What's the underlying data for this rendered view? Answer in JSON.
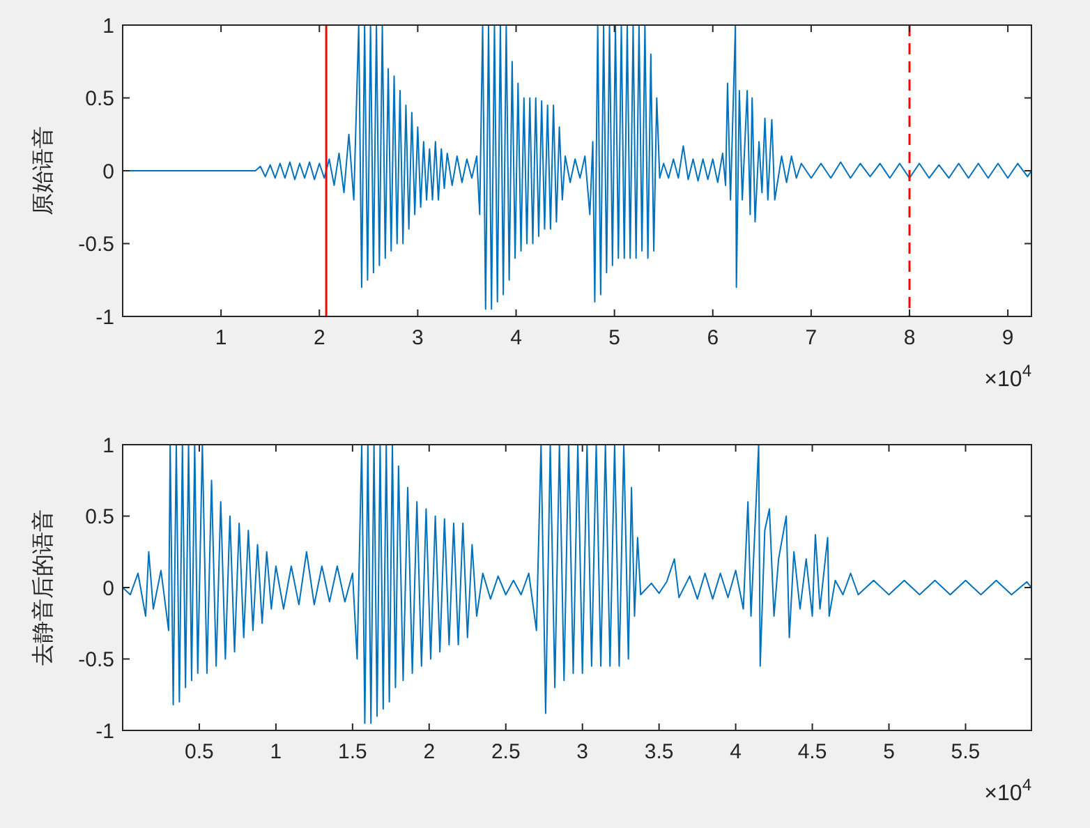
{
  "chart_data": [
    {
      "type": "line",
      "ylabel": "原始语音",
      "xlim": [
        0,
        9.24
      ],
      "ylim": [
        -1,
        1
      ],
      "xticks": [
        1,
        2,
        3,
        4,
        5,
        6,
        7,
        8,
        9
      ],
      "yticks": [
        -1,
        -0.5,
        0,
        0.5,
        1
      ],
      "grid": false,
      "marker": "none",
      "line_style": "solid",
      "annotations": [
        "×10$^{4}$"
      ],
      "ref_lines": [
        {
          "axis": "x",
          "value": 2.07,
          "label": null,
          "color": "#ff0000",
          "line_style": "solid"
        },
        {
          "axis": "x",
          "value": 8,
          "label": null,
          "color": "#ff0000",
          "line_style": "dashed"
        }
      ],
      "series": [
        {
          "color": "#0072bd",
          "x": [
            0,
            1.35,
            1.4,
            1.45,
            1.5,
            1.55,
            1.6,
            1.65,
            1.7,
            1.75,
            1.8,
            1.85,
            1.9,
            1.95,
            2,
            2.05,
            2.1,
            2.15,
            2.2,
            2.25,
            2.3,
            2.35,
            2.4,
            2.43,
            2.46,
            2.49,
            2.52,
            2.55,
            2.58,
            2.61,
            2.64,
            2.67,
            2.7,
            2.73,
            2.76,
            2.79,
            2.82,
            2.85,
            2.88,
            2.91,
            2.94,
            2.97,
            3,
            3.03,
            3.06,
            3.09,
            3.12,
            3.15,
            3.18,
            3.21,
            3.24,
            3.27,
            3.3,
            3.35,
            3.4,
            3.45,
            3.5,
            3.55,
            3.6,
            3.63,
            3.66,
            3.69,
            3.72,
            3.75,
            3.78,
            3.81,
            3.84,
            3.87,
            3.9,
            3.93,
            3.96,
            3.99,
            4.02,
            4.05,
            4.08,
            4.11,
            4.14,
            4.17,
            4.2,
            4.23,
            4.26,
            4.29,
            4.32,
            4.35,
            4.38,
            4.41,
            4.44,
            4.47,
            4.5,
            4.55,
            4.6,
            4.65,
            4.7,
            4.75,
            4.78,
            4.8,
            4.83,
            4.86,
            4.89,
            4.92,
            4.95,
            4.98,
            5.01,
            5.04,
            5.07,
            5.1,
            5.13,
            5.16,
            5.19,
            5.22,
            5.25,
            5.28,
            5.31,
            5.34,
            5.37,
            5.4,
            5.43,
            5.46,
            5.5,
            5.55,
            5.6,
            5.65,
            5.7,
            5.75,
            5.8,
            5.85,
            5.9,
            5.95,
            6,
            6.05,
            6.1,
            6.13,
            6.15,
            6.18,
            6.23,
            6.24,
            6.27,
            6.3,
            6.35,
            6.38,
            6.4,
            6.43,
            6.47,
            6.5,
            6.53,
            6.56,
            6.6,
            6.63,
            6.7,
            6.75,
            6.8,
            6.85,
            6.9,
            7,
            7.1,
            7.2,
            7.3,
            7.4,
            7.5,
            7.6,
            7.7,
            7.8,
            7.9,
            8,
            8.1,
            8.2,
            8.3,
            8.4,
            8.5,
            8.6,
            8.7,
            8.8,
            8.9,
            9,
            9.1,
            9.2,
            9.24
          ],
          "values": [
            0,
            0,
            0.03,
            -0.04,
            0.04,
            -0.05,
            0.05,
            -0.05,
            0.06,
            -0.06,
            0.05,
            -0.05,
            0.06,
            -0.06,
            0.05,
            -0.05,
            0.08,
            -0.1,
            0.12,
            -0.15,
            0.25,
            -0.2,
            1,
            -0.8,
            1,
            -0.75,
            1,
            -0.7,
            1,
            -0.65,
            1,
            -0.6,
            0.7,
            -0.55,
            0.65,
            -0.5,
            0.55,
            -0.5,
            0.45,
            -0.4,
            0.4,
            -0.3,
            0.3,
            -0.25,
            0.2,
            -0.2,
            0.15,
            -0.2,
            0.2,
            -0.2,
            0.15,
            -0.12,
            0.12,
            -0.1,
            0.1,
            -0.08,
            0.08,
            -0.05,
            0.1,
            -0.3,
            1,
            -0.95,
            1,
            -0.95,
            1,
            -0.9,
            1,
            -0.85,
            1,
            -0.75,
            0.75,
            -0.6,
            0.6,
            -0.55,
            0.5,
            -0.5,
            0.5,
            -0.5,
            0.5,
            -0.45,
            0.48,
            -0.4,
            0.45,
            -0.4,
            0.45,
            -0.35,
            0.3,
            -0.2,
            0.1,
            -0.08,
            0.08,
            -0.05,
            0.1,
            -0.3,
            0.2,
            -0.9,
            1,
            -0.85,
            1,
            -0.7,
            1,
            -0.65,
            1,
            -0.6,
            1,
            -0.6,
            1,
            -0.6,
            1,
            -0.6,
            1,
            -0.55,
            1,
            -0.6,
            0.8,
            -0.55,
            0.5,
            -0.05,
            0.05,
            -0.05,
            0.08,
            -0.05,
            0.17,
            -0.06,
            0.08,
            -0.07,
            0.08,
            -0.06,
            0.08,
            -0.08,
            0.12,
            -0.1,
            0.6,
            -0.2,
            1,
            -0.8,
            0.55,
            -0.2,
            0.55,
            -0.3,
            0.5,
            -0.35,
            0.2,
            -0.15,
            0.36,
            -0.2,
            0.35,
            -0.2,
            0.1,
            -0.08,
            0.1,
            -0.05,
            0.05,
            -0.05,
            0.05,
            -0.05,
            0.06,
            -0.05,
            0.05,
            -0.04,
            0.05,
            -0.05,
            0.05,
            -0.05,
            0.05,
            -0.05,
            0.04,
            -0.05,
            0.05,
            -0.05,
            0.05,
            -0.05,
            0.05,
            -0.05,
            0.05,
            -0.04,
            0
          ]
        }
      ]
    },
    {
      "type": "line",
      "ylabel": "去静音后的语音",
      "xlim": [
        0,
        5.93
      ],
      "ylim": [
        -1,
        1
      ],
      "xticks": [
        0.5,
        1,
        1.5,
        2,
        2.5,
        3,
        3.5,
        4,
        4.5,
        5,
        5.5
      ],
      "yticks": [
        -1,
        -0.5,
        0,
        0.5,
        1
      ],
      "grid": false,
      "marker": "none",
      "line_style": "solid",
      "annotations": [
        "×10$^{4}$"
      ],
      "series": [
        {
          "color": "#0072bd",
          "x": [
            0,
            0.05,
            0.1,
            0.15,
            0.17,
            0.2,
            0.25,
            0.3,
            0.31,
            0.33,
            0.35,
            0.37,
            0.39,
            0.41,
            0.43,
            0.45,
            0.47,
            0.49,
            0.52,
            0.55,
            0.58,
            0.61,
            0.64,
            0.67,
            0.7,
            0.73,
            0.76,
            0.79,
            0.82,
            0.85,
            0.88,
            0.91,
            0.94,
            0.97,
            1,
            1.05,
            1.1,
            1.15,
            1.2,
            1.25,
            1.3,
            1.35,
            1.4,
            1.45,
            1.5,
            1.53,
            1.56,
            1.58,
            1.6,
            1.62,
            1.64,
            1.66,
            1.68,
            1.7,
            1.72,
            1.74,
            1.76,
            1.78,
            1.8,
            1.83,
            1.86,
            1.89,
            1.92,
            1.95,
            1.98,
            2.01,
            2.04,
            2.07,
            2.1,
            2.13,
            2.16,
            2.19,
            2.22,
            2.25,
            2.28,
            2.31,
            2.35,
            2.4,
            2.45,
            2.5,
            2.55,
            2.6,
            2.65,
            2.7,
            2.73,
            2.76,
            2.79,
            2.82,
            2.85,
            2.88,
            2.91,
            2.94,
            2.97,
            3,
            3.03,
            3.06,
            3.09,
            3.12,
            3.15,
            3.18,
            3.21,
            3.24,
            3.27,
            3.3,
            3.32,
            3.34,
            3.36,
            3.38,
            3.45,
            3.5,
            3.55,
            3.6,
            3.63,
            3.7,
            3.75,
            3.8,
            3.85,
            3.9,
            3.95,
            4,
            4.05,
            4.08,
            4.1,
            4.15,
            4.16,
            4.19,
            4.22,
            4.25,
            4.28,
            4.33,
            4.35,
            4.38,
            4.42,
            4.46,
            4.5,
            4.52,
            4.55,
            4.6,
            4.61,
            4.65,
            4.7,
            4.75,
            4.8,
            4.9,
            5,
            5.1,
            5.2,
            5.3,
            5.4,
            5.5,
            5.6,
            5.7,
            5.8,
            5.9,
            5.93
          ],
          "values": [
            0,
            -0.05,
            0.1,
            -0.2,
            0.25,
            -0.15,
            0.12,
            -0.3,
            1,
            -0.82,
            1,
            -0.8,
            1,
            -0.7,
            1,
            -0.65,
            1,
            -0.6,
            1,
            -0.6,
            0.75,
            -0.55,
            0.6,
            -0.5,
            0.5,
            -0.45,
            0.45,
            -0.35,
            0.4,
            -0.3,
            0.3,
            -0.25,
            0.25,
            -0.15,
            0.15,
            -0.15,
            0.15,
            -0.12,
            0.25,
            -0.12,
            0.15,
            -0.1,
            0.15,
            -0.1,
            0.1,
            -0.5,
            1,
            -0.95,
            1,
            -0.95,
            1,
            -0.9,
            1,
            -0.85,
            1,
            -0.8,
            1,
            -0.7,
            0.85,
            -0.65,
            0.7,
            -0.6,
            0.6,
            -0.55,
            0.55,
            -0.5,
            0.5,
            -0.45,
            0.48,
            -0.4,
            0.45,
            -0.4,
            0.45,
            -0.35,
            0.3,
            -0.2,
            0.1,
            -0.08,
            0.08,
            -0.05,
            0.05,
            -0.05,
            0.1,
            -0.3,
            1,
            -0.88,
            1,
            -0.7,
            1,
            -0.65,
            1,
            -0.6,
            1,
            -0.6,
            1,
            -0.55,
            1,
            -0.55,
            1,
            -0.55,
            1,
            -0.55,
            1,
            -0.5,
            0.7,
            -0.2,
            0.35,
            -0.05,
            0.03,
            -0.04,
            0.04,
            0.2,
            -0.07,
            0.08,
            -0.08,
            0.1,
            -0.08,
            0.1,
            -0.07,
            0.12,
            -0.15,
            0.6,
            -0.2,
            1,
            -0.55,
            0.4,
            0.55,
            -0.2,
            0.2,
            0.5,
            -0.35,
            0.25,
            -0.15,
            0.2,
            -0.2,
            0.37,
            -0.15,
            0.35,
            -0.2,
            0.05,
            -0.05,
            0.1,
            -0.05,
            0.05,
            -0.05,
            0.05,
            -0.05,
            0.05,
            -0.05,
            0.05,
            -0.05,
            0.05,
            -0.05,
            0.04,
            0
          ]
        }
      ]
    }
  ]
}
